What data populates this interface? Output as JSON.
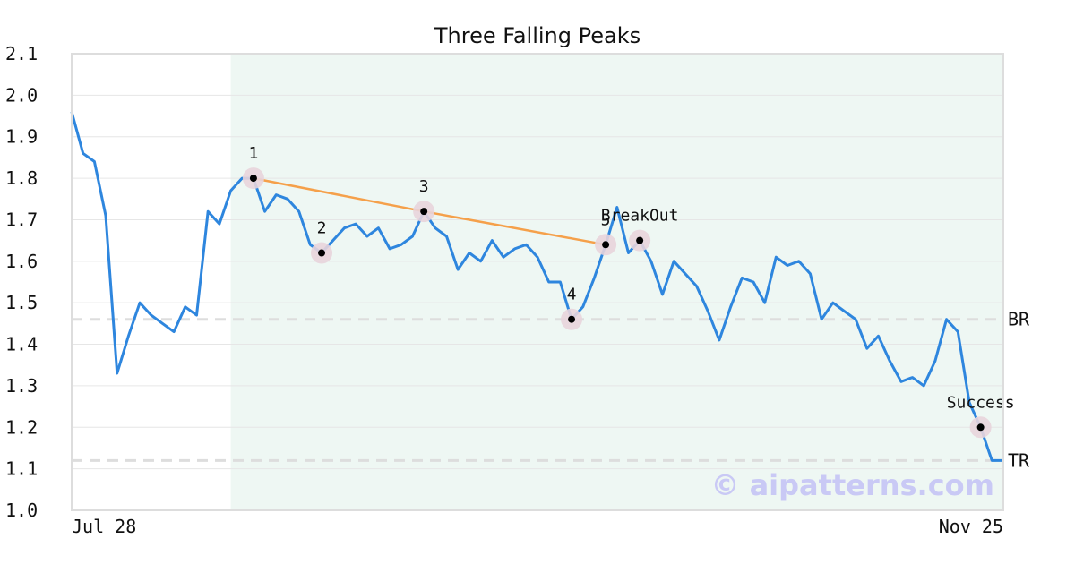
{
  "chart_data": {
    "type": "line",
    "title": "Three Falling Peaks",
    "xlabel": "",
    "ylabel": "",
    "x_tick_labels": [
      "Jul 28",
      "Nov 25"
    ],
    "ylim": [
      1.0,
      2.1
    ],
    "y_ticks": [
      "1.0",
      "1.1",
      "1.2",
      "1.3",
      "1.4",
      "1.5",
      "1.6",
      "1.7",
      "1.8",
      "1.9",
      "2.0",
      "2.1"
    ],
    "grid": "horizontal",
    "colors": {
      "line": "#2e86de",
      "trendline": "#f5a04a",
      "pattern_band": "#eef7f3",
      "level_line": "#dddddd",
      "marker_halo": "#e8d4dc",
      "marker": "#000000"
    },
    "series": [
      {
        "values": [
          1.96,
          1.86,
          1.84,
          1.71,
          1.33,
          1.42,
          1.5,
          1.47,
          1.45,
          1.43,
          1.49,
          1.47,
          1.72,
          1.69,
          1.77,
          1.8,
          1.8,
          1.72,
          1.76,
          1.75,
          1.72,
          1.64,
          1.62,
          1.65,
          1.68,
          1.69,
          1.66,
          1.68,
          1.63,
          1.64,
          1.66,
          1.72,
          1.68,
          1.66,
          1.58,
          1.62,
          1.6,
          1.65,
          1.61,
          1.63,
          1.64,
          1.61,
          1.55,
          1.55,
          1.46,
          1.49,
          1.56,
          1.64,
          1.73,
          1.62,
          1.65,
          1.6,
          1.52,
          1.6,
          1.57,
          1.54,
          1.48,
          1.41,
          1.49,
          1.56,
          1.55,
          1.5,
          1.61,
          1.59,
          1.6,
          1.57,
          1.46,
          1.5,
          1.48,
          1.46,
          1.39,
          1.42,
          1.36,
          1.31,
          1.32,
          1.3,
          1.36,
          1.46,
          1.43,
          1.26,
          1.2,
          1.12,
          1.12
        ]
      }
    ],
    "shaded_region": {
      "from_index": 14,
      "to_index": 82
    },
    "trendline": [
      {
        "index": 16,
        "value": 1.8
      },
      {
        "index": 31,
        "value": 1.72
      },
      {
        "index": 47,
        "value": 1.64
      }
    ],
    "levels": [
      {
        "label": "BR",
        "value": 1.46
      },
      {
        "label": "TR",
        "value": 1.12
      }
    ],
    "points": [
      {
        "label": "1",
        "index": 16,
        "value": 1.8
      },
      {
        "label": "2",
        "index": 22,
        "value": 1.62
      },
      {
        "label": "3",
        "index": 31,
        "value": 1.72
      },
      {
        "label": "4",
        "index": 44,
        "value": 1.46
      },
      {
        "label": "5",
        "index": 47,
        "value": 1.64
      },
      {
        "label": "BreakOut",
        "index": 50,
        "value": 1.65
      },
      {
        "label": "Success",
        "index": 80,
        "value": 1.2
      }
    ],
    "watermark": "© aipatterns.com"
  }
}
